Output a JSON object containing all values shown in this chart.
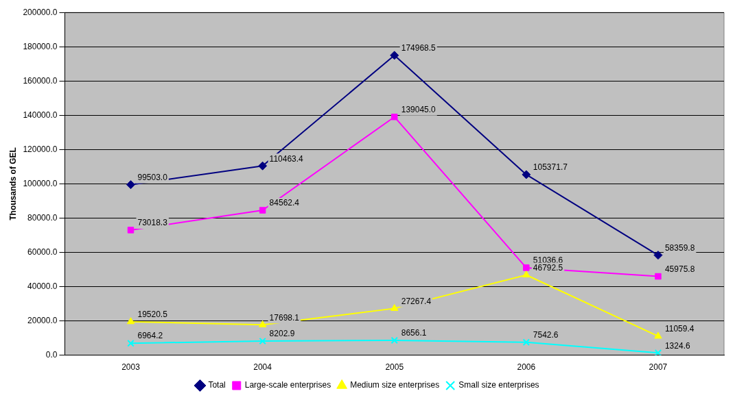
{
  "chart_data": {
    "type": "line",
    "ylabel": "Thousands of GEL",
    "categories": [
      "2003",
      "2004",
      "2005",
      "2006",
      "2007"
    ],
    "ylim": [
      0,
      200000
    ],
    "yticks": [
      {
        "value": 0,
        "label": "0.0"
      },
      {
        "value": 20000,
        "label": "20000.0"
      },
      {
        "value": 40000,
        "label": "40000.0"
      },
      {
        "value": 60000,
        "label": "60000.0"
      },
      {
        "value": 80000,
        "label": "80000.0"
      },
      {
        "value": 100000,
        "label": "100000.0"
      },
      {
        "value": 120000,
        "label": "120000.0"
      },
      {
        "value": 140000,
        "label": "140000.0"
      },
      {
        "value": 160000,
        "label": "160000.0"
      },
      {
        "value": 180000,
        "label": "180000.0"
      },
      {
        "value": 200000,
        "label": "200000.0"
      }
    ],
    "grid": "y",
    "legend": "bottom",
    "line_style": "solid",
    "series": [
      {
        "name": "Total",
        "color": "#000080",
        "marker": "diamond",
        "values": [
          99503.0,
          110463.4,
          174968.5,
          105371.7,
          58359.8
        ],
        "value_labels": [
          "99503.0",
          "110463.4",
          "174968.5",
          "105371.7",
          "58359.8"
        ]
      },
      {
        "name": "Large-scale enterprises",
        "color": "#ff00ff",
        "marker": "square",
        "values": [
          73018.3,
          84562.4,
          139045.0,
          51036.6,
          45975.8
        ],
        "value_labels": [
          "73018.3",
          "84562.4",
          "139045.0",
          "51036.6",
          "45975.8"
        ]
      },
      {
        "name": "Medium size enterprises",
        "color": "#ffff00",
        "marker": "triangle",
        "values": [
          19520.5,
          17698.1,
          27267.4,
          46792.5,
          11059.4
        ],
        "value_labels": [
          "19520.5",
          "17698.1",
          "27267.4",
          "46792.5",
          "11059.4"
        ]
      },
      {
        "name": "Small size enterprises",
        "color": "#00ffff",
        "marker": "cross",
        "values": [
          6964.2,
          8202.9,
          8656.1,
          7542.6,
          1324.6
        ],
        "value_labels": [
          "6964.2",
          "8202.9",
          "8656.1",
          "7542.6",
          "1324.6"
        ]
      }
    ]
  }
}
